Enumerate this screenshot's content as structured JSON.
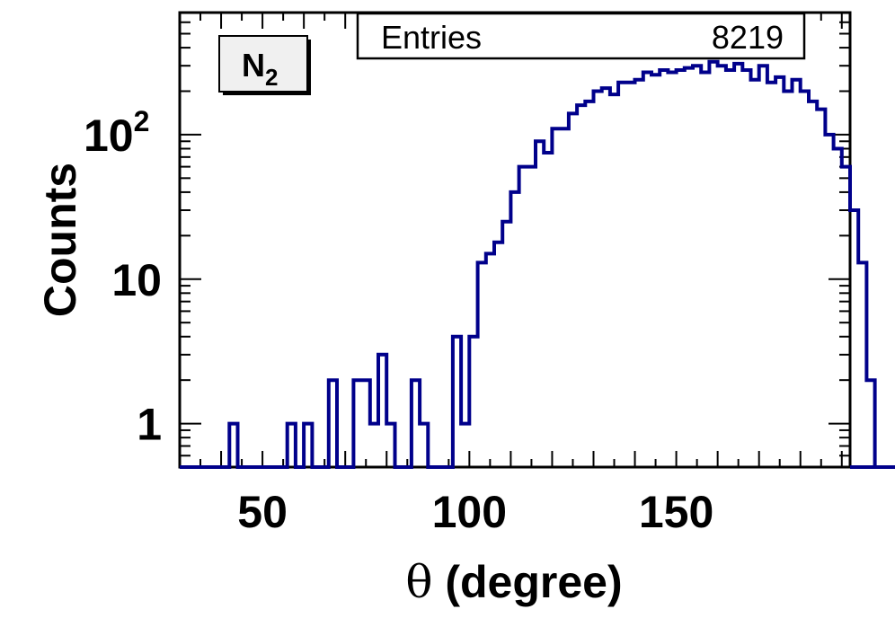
{
  "chart_data": {
    "type": "histogram",
    "xlabel_symbol": "θ",
    "xlabel_rest": " (degree)",
    "ylabel": "Counts",
    "xlim": [
      30,
      192
    ],
    "ylim": [
      0.5,
      700
    ],
    "yscale": "log",
    "x_ticks": [
      {
        "value": 50,
        "label": "50"
      },
      {
        "value": 100,
        "label": "100"
      },
      {
        "value": 150,
        "label": "150"
      }
    ],
    "y_ticks": [
      {
        "value": 1,
        "label": "1"
      },
      {
        "value": 10,
        "label": "10"
      },
      {
        "value": 100,
        "label": "10",
        "exponent": "2"
      }
    ],
    "line_color": "#00008b",
    "bin_width": 2,
    "bin_start": 30,
    "counts": [
      0,
      0,
      0,
      0,
      0,
      0,
      1,
      0,
      0,
      0,
      0,
      0,
      0,
      1,
      0,
      1,
      0,
      0,
      2,
      0,
      0,
      2,
      2,
      1,
      3,
      1,
      0,
      0,
      2,
      1,
      0,
      0,
      0,
      4,
      1,
      4,
      13,
      15,
      18,
      25,
      40,
      60,
      60,
      90,
      75,
      110,
      110,
      140,
      160,
      170,
      200,
      210,
      190,
      230,
      230,
      240,
      270,
      260,
      280,
      270,
      280,
      290,
      300,
      270,
      320,
      300,
      280,
      310,
      280,
      240,
      300,
      230,
      250,
      200,
      240,
      200,
      170,
      150,
      100,
      80,
      60,
      30,
      13,
      2,
      0,
      0,
      0,
      0,
      0,
      0,
      0
    ],
    "stats": {
      "label": "Entries",
      "value": "8219"
    },
    "tag": {
      "base": "N",
      "subscript": "2"
    }
  }
}
